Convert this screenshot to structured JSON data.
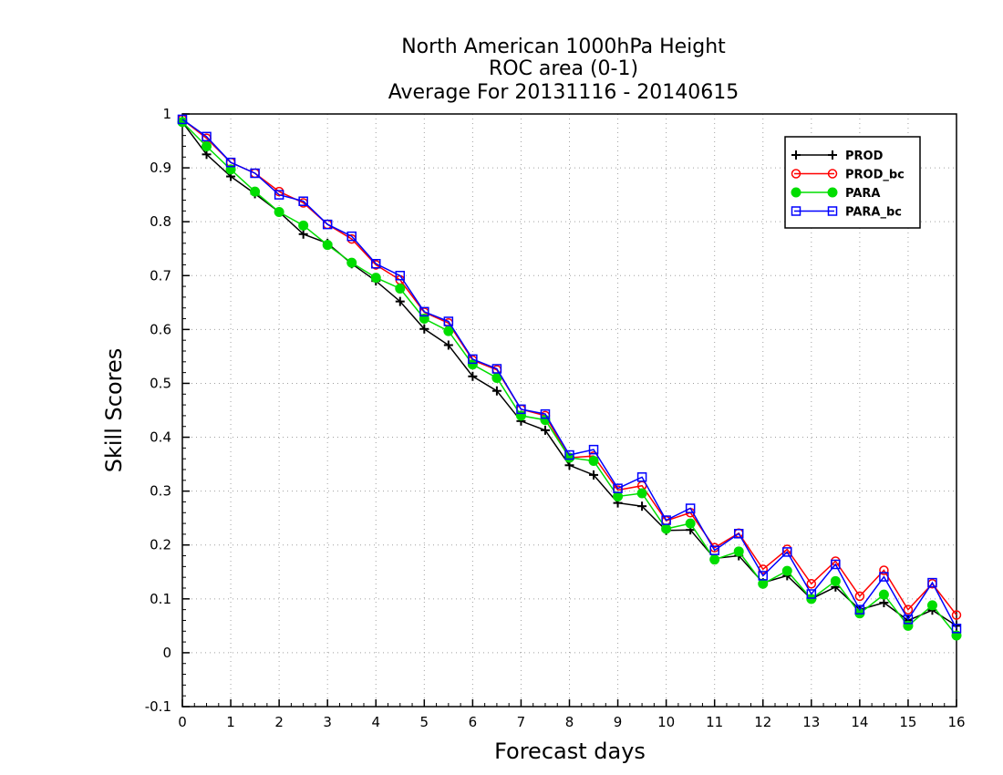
{
  "chart_data": {
    "type": "line",
    "title_lines": [
      "North American 1000hPa Height",
      "ROC area (0-1)",
      "Average For 20131116 - 20140615"
    ],
    "xlabel": "Forecast days",
    "ylabel": "Skill Scores",
    "xlim": [
      0,
      16
    ],
    "ylim": [
      -0.1,
      1
    ],
    "x_ticks": [
      0,
      1,
      2,
      3,
      4,
      5,
      6,
      7,
      8,
      9,
      10,
      11,
      12,
      13,
      14,
      15,
      16
    ],
    "x_tick_labels": [
      "0",
      "1",
      "2",
      "3",
      "4",
      "5",
      "6",
      "7",
      "8",
      "9",
      "10",
      "11",
      "12",
      "13",
      "14",
      "15",
      "16"
    ],
    "y_ticks": [
      -0.1,
      0,
      0.1,
      0.2,
      0.3,
      0.4,
      0.5,
      0.6,
      0.7,
      0.8,
      0.9,
      1
    ],
    "y_tick_labels": [
      "-0.1",
      "0",
      "0.1",
      "0.2",
      "0.3",
      "0.4",
      "0.5",
      "0.6",
      "0.7",
      "0.8",
      "0.9",
      "1"
    ],
    "grid": true,
    "legend_position": "top-right",
    "x": [
      0,
      0.5,
      1,
      1.5,
      2,
      2.5,
      3,
      3.5,
      4,
      4.5,
      5,
      5.5,
      6,
      6.5,
      7,
      7.5,
      8,
      8.5,
      9,
      9.5,
      10,
      10.5,
      11,
      11.5,
      12,
      12.5,
      13,
      13.5,
      14,
      14.5,
      15,
      15.5,
      16
    ],
    "series": [
      {
        "name": "PROD",
        "color": "#000000",
        "marker": "plus",
        "values": [
          0.985,
          0.925,
          0.884,
          0.852,
          0.818,
          0.777,
          0.76,
          0.722,
          0.69,
          0.652,
          0.601,
          0.571,
          0.513,
          0.486,
          0.43,
          0.413,
          0.348,
          0.33,
          0.278,
          0.272,
          0.227,
          0.228,
          0.175,
          0.18,
          0.13,
          0.143,
          0.1,
          0.122,
          0.08,
          0.093,
          0.06,
          0.079,
          0.05
        ]
      },
      {
        "name": "PROD_bc",
        "color": "#ff0000",
        "marker": "open-circle",
        "values": [
          0.99,
          0.955,
          0.91,
          0.89,
          0.856,
          0.835,
          0.795,
          0.768,
          0.72,
          0.692,
          0.632,
          0.612,
          0.543,
          0.525,
          0.452,
          0.44,
          0.362,
          0.365,
          0.302,
          0.31,
          0.245,
          0.26,
          0.195,
          0.222,
          0.155,
          0.192,
          0.128,
          0.17,
          0.105,
          0.153,
          0.08,
          0.128,
          0.07
        ]
      },
      {
        "name": "PARA",
        "color": "#00dd00",
        "marker": "filled-circle",
        "values": [
          0.985,
          0.94,
          0.897,
          0.856,
          0.818,
          0.793,
          0.757,
          0.724,
          0.696,
          0.676,
          0.62,
          0.597,
          0.535,
          0.51,
          0.44,
          0.432,
          0.362,
          0.356,
          0.29,
          0.296,
          0.23,
          0.24,
          0.173,
          0.188,
          0.128,
          0.152,
          0.1,
          0.133,
          0.073,
          0.108,
          0.05,
          0.088,
          0.032
        ]
      },
      {
        "name": "PARA_bc",
        "color": "#0000ff",
        "marker": "open-square",
        "values": [
          0.99,
          0.958,
          0.91,
          0.89,
          0.85,
          0.838,
          0.795,
          0.773,
          0.722,
          0.7,
          0.633,
          0.615,
          0.545,
          0.527,
          0.452,
          0.443,
          0.367,
          0.377,
          0.305,
          0.326,
          0.246,
          0.268,
          0.19,
          0.221,
          0.143,
          0.187,
          0.109,
          0.164,
          0.08,
          0.141,
          0.062,
          0.13,
          0.045
        ]
      }
    ]
  }
}
